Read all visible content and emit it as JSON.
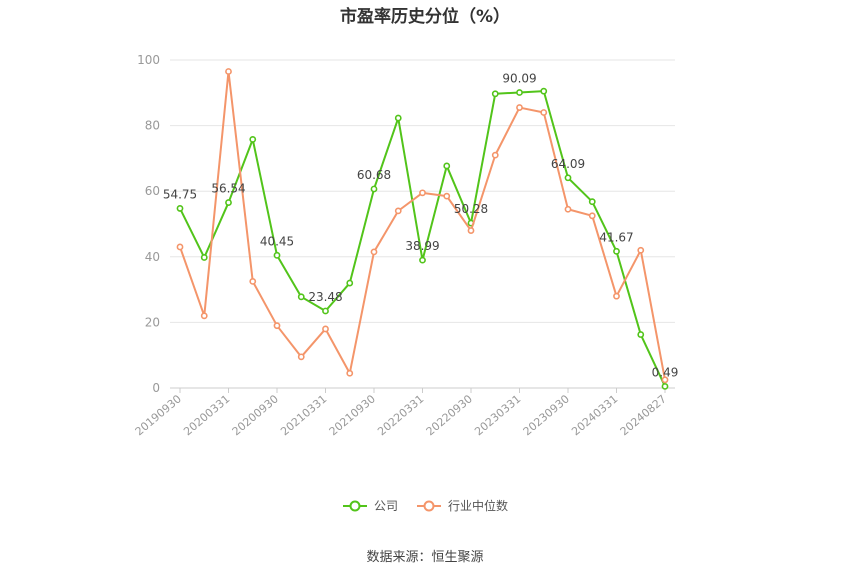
{
  "chart_data": {
    "type": "line",
    "title": "市盈率历史分位（%）",
    "x": [
      "20190930",
      "20191231",
      "20200331",
      "20200630",
      "20200930",
      "20201231",
      "20210331",
      "20210630",
      "20210930",
      "20211231",
      "20220331",
      "20220630",
      "20220930",
      "20221231",
      "20230331",
      "20230630",
      "20230930",
      "20231231",
      "20240331",
      "20240630",
      "20240827"
    ],
    "tick_labels": [
      "20190930",
      "20200331",
      "20200930",
      "20210331",
      "20210930",
      "20220331",
      "20220930",
      "20230331",
      "20230930",
      "20240331",
      "20240827"
    ],
    "ylim": [
      0,
      100
    ],
    "yticks": [
      0,
      20,
      40,
      60,
      80,
      100
    ],
    "grid": true,
    "legend_position": "bottom",
    "series": [
      {
        "name": "公司",
        "color": "#52c41a",
        "values": [
          54.75,
          39.8,
          56.54,
          75.8,
          40.45,
          27.8,
          23.48,
          32.0,
          60.68,
          82.3,
          38.99,
          67.7,
          50.28,
          89.7,
          90.09,
          90.5,
          64.09,
          56.8,
          41.67,
          16.3,
          0.49
        ],
        "labels": {
          "0": "54.75",
          "2": "56.54",
          "4": "40.45",
          "6": "23.48",
          "8": "60.68",
          "10": "38.99",
          "12": "50.28",
          "14": "90.09",
          "16": "64.09",
          "18": "41.67",
          "20": "0.49"
        }
      },
      {
        "name": "行业中位数",
        "color": "#f4956a",
        "values": [
          43.0,
          22.0,
          96.5,
          32.5,
          19.0,
          9.5,
          18.0,
          4.5,
          41.5,
          54.0,
          59.5,
          58.5,
          48.0,
          71.0,
          85.5,
          84.0,
          54.5,
          52.5,
          28.0,
          42.0,
          2.5
        ]
      }
    ]
  },
  "source_note": "数据来源：恒生聚源"
}
